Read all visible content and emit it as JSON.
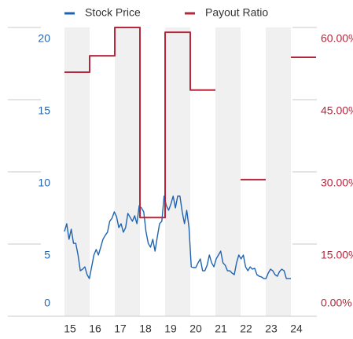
{
  "chart_data": {
    "type": "line",
    "xlim": [
      15,
      24.5
    ],
    "xticks": [
      15,
      16,
      17,
      18,
      19,
      20,
      21,
      22,
      23,
      24
    ],
    "ylim": [
      0,
      20
    ],
    "yticks": [
      0,
      5,
      10,
      15,
      20
    ],
    "y2lim": [
      0,
      60
    ],
    "y2ticks": [
      {
        "value": 0,
        "label": "0.00%"
      },
      {
        "value": 15,
        "label": "15.00%"
      },
      {
        "value": 30,
        "label": "30.00%"
      },
      {
        "value": 45,
        "label": "45.00%"
      },
      {
        "value": 60,
        "label": "60.00%"
      }
    ],
    "shade_alternate_years": true,
    "series": [
      {
        "name": "Stock Price",
        "color": "#1f63b0",
        "x": [
          15,
          15.09,
          15.18,
          15.27,
          15.36,
          15.45,
          15.54,
          15.63,
          15.72,
          15.81,
          15.9,
          15.99,
          16.08,
          16.17,
          16.26,
          16.35,
          16.44,
          16.53,
          16.62,
          16.71,
          16.8,
          16.89,
          16.98,
          17.07,
          17.16,
          17.25,
          17.34,
          17.43,
          17.52,
          17.61,
          17.7,
          17.79,
          17.88,
          17.97,
          18.06,
          18.15,
          18.24,
          18.33,
          18.42,
          18.51,
          18.6,
          18.69,
          18.78,
          18.87,
          18.96,
          19.05,
          19.14,
          19.23,
          19.32,
          19.41,
          19.5,
          19.59,
          19.68,
          19.77,
          19.86,
          19.95,
          20.04,
          20.13,
          20.22,
          20.31,
          20.4,
          20.49,
          20.58,
          20.67,
          20.76,
          20.85,
          20.94,
          21.03,
          21.12,
          21.21,
          21.3,
          21.39,
          21.48,
          21.57,
          21.66,
          21.75,
          21.84,
          21.93,
          22.02,
          22.11,
          22.2,
          22.29,
          22.38,
          22.47,
          22.56,
          22.65,
          22.74,
          22.83,
          22.92,
          23.01,
          23.1,
          23.19,
          23.28,
          23.37,
          23.46,
          23.55,
          23.64,
          23.73,
          23.82,
          23.91,
          24
        ],
        "values": [
          5.87,
          6.41,
          5.33,
          6.03,
          5.05,
          5.05,
          4.24,
          3.15,
          3.26,
          3.42,
          2.88,
          2.61,
          3.42,
          4.24,
          4.62,
          4.24,
          4.78,
          5.33,
          5.6,
          5.82,
          6.58,
          6.79,
          7.23,
          6.9,
          6.14,
          6.41,
          5.82,
          6.14,
          7.12,
          6.85,
          6.58,
          6.96,
          6.41,
          7.66,
          7.5,
          7.23,
          5.87,
          5.05,
          4.78,
          5.33,
          4.51,
          5.49,
          6.41,
          6.58,
          8.32,
          7.66,
          7.34,
          7.77,
          8.32,
          7.5,
          8.32,
          8.32,
          7.23,
          6.41,
          7.34,
          6.14,
          3.42,
          3.37,
          3.37,
          3.7,
          3.97,
          3.15,
          3.15,
          3.53,
          4.24,
          3.7,
          3.42,
          3.97,
          4.24,
          4.51,
          3.7,
          3.53,
          3.15,
          3.15,
          2.99,
          2.88,
          3.7,
          4.24,
          3.97,
          4.24,
          3.42,
          3.15,
          3.42,
          3.26,
          3.32,
          2.88,
          2.77,
          2.72,
          2.61,
          2.61,
          2.99,
          3.26,
          3.15,
          2.88,
          2.77,
          3.1,
          3.26,
          3.15,
          2.61,
          2.61,
          2.61
        ]
      },
      {
        "name": "Payout Ratio",
        "color": "#b5283c",
        "axis": "y2",
        "drawstyle": "steps-post",
        "x": [
          15,
          16,
          17,
          18,
          19,
          20,
          21,
          22,
          23,
          24
        ],
        "values": [
          50.7,
          54.1,
          60,
          20.5,
          59,
          47,
          null,
          28.4,
          null,
          53.8
        ]
      }
    ]
  }
}
